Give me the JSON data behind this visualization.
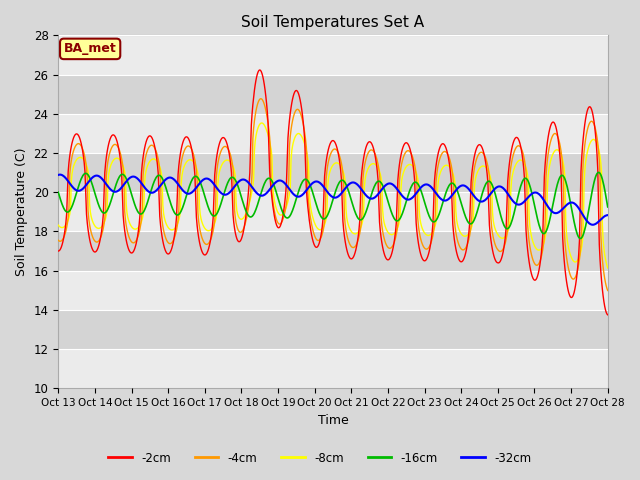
{
  "title": "Soil Temperatures Set A",
  "xlabel": "Time",
  "ylabel": "Soil Temperature (C)",
  "ylim": [
    10,
    28
  ],
  "yticks": [
    10,
    12,
    14,
    16,
    18,
    20,
    22,
    24,
    26,
    28
  ],
  "fig_bg": "#d8d8d8",
  "plot_bg_light": "#ebebeb",
  "plot_bg_dark": "#d4d4d4",
  "annotation_text": "BA_met",
  "annotation_bg": "#ffff99",
  "annotation_border": "#8B0000",
  "colors": {
    "-2cm": "#ff0000",
    "-4cm": "#ff9900",
    "-8cm": "#ffff00",
    "-16cm": "#00bb00",
    "-32cm": "#0000ff"
  },
  "n_points": 721
}
